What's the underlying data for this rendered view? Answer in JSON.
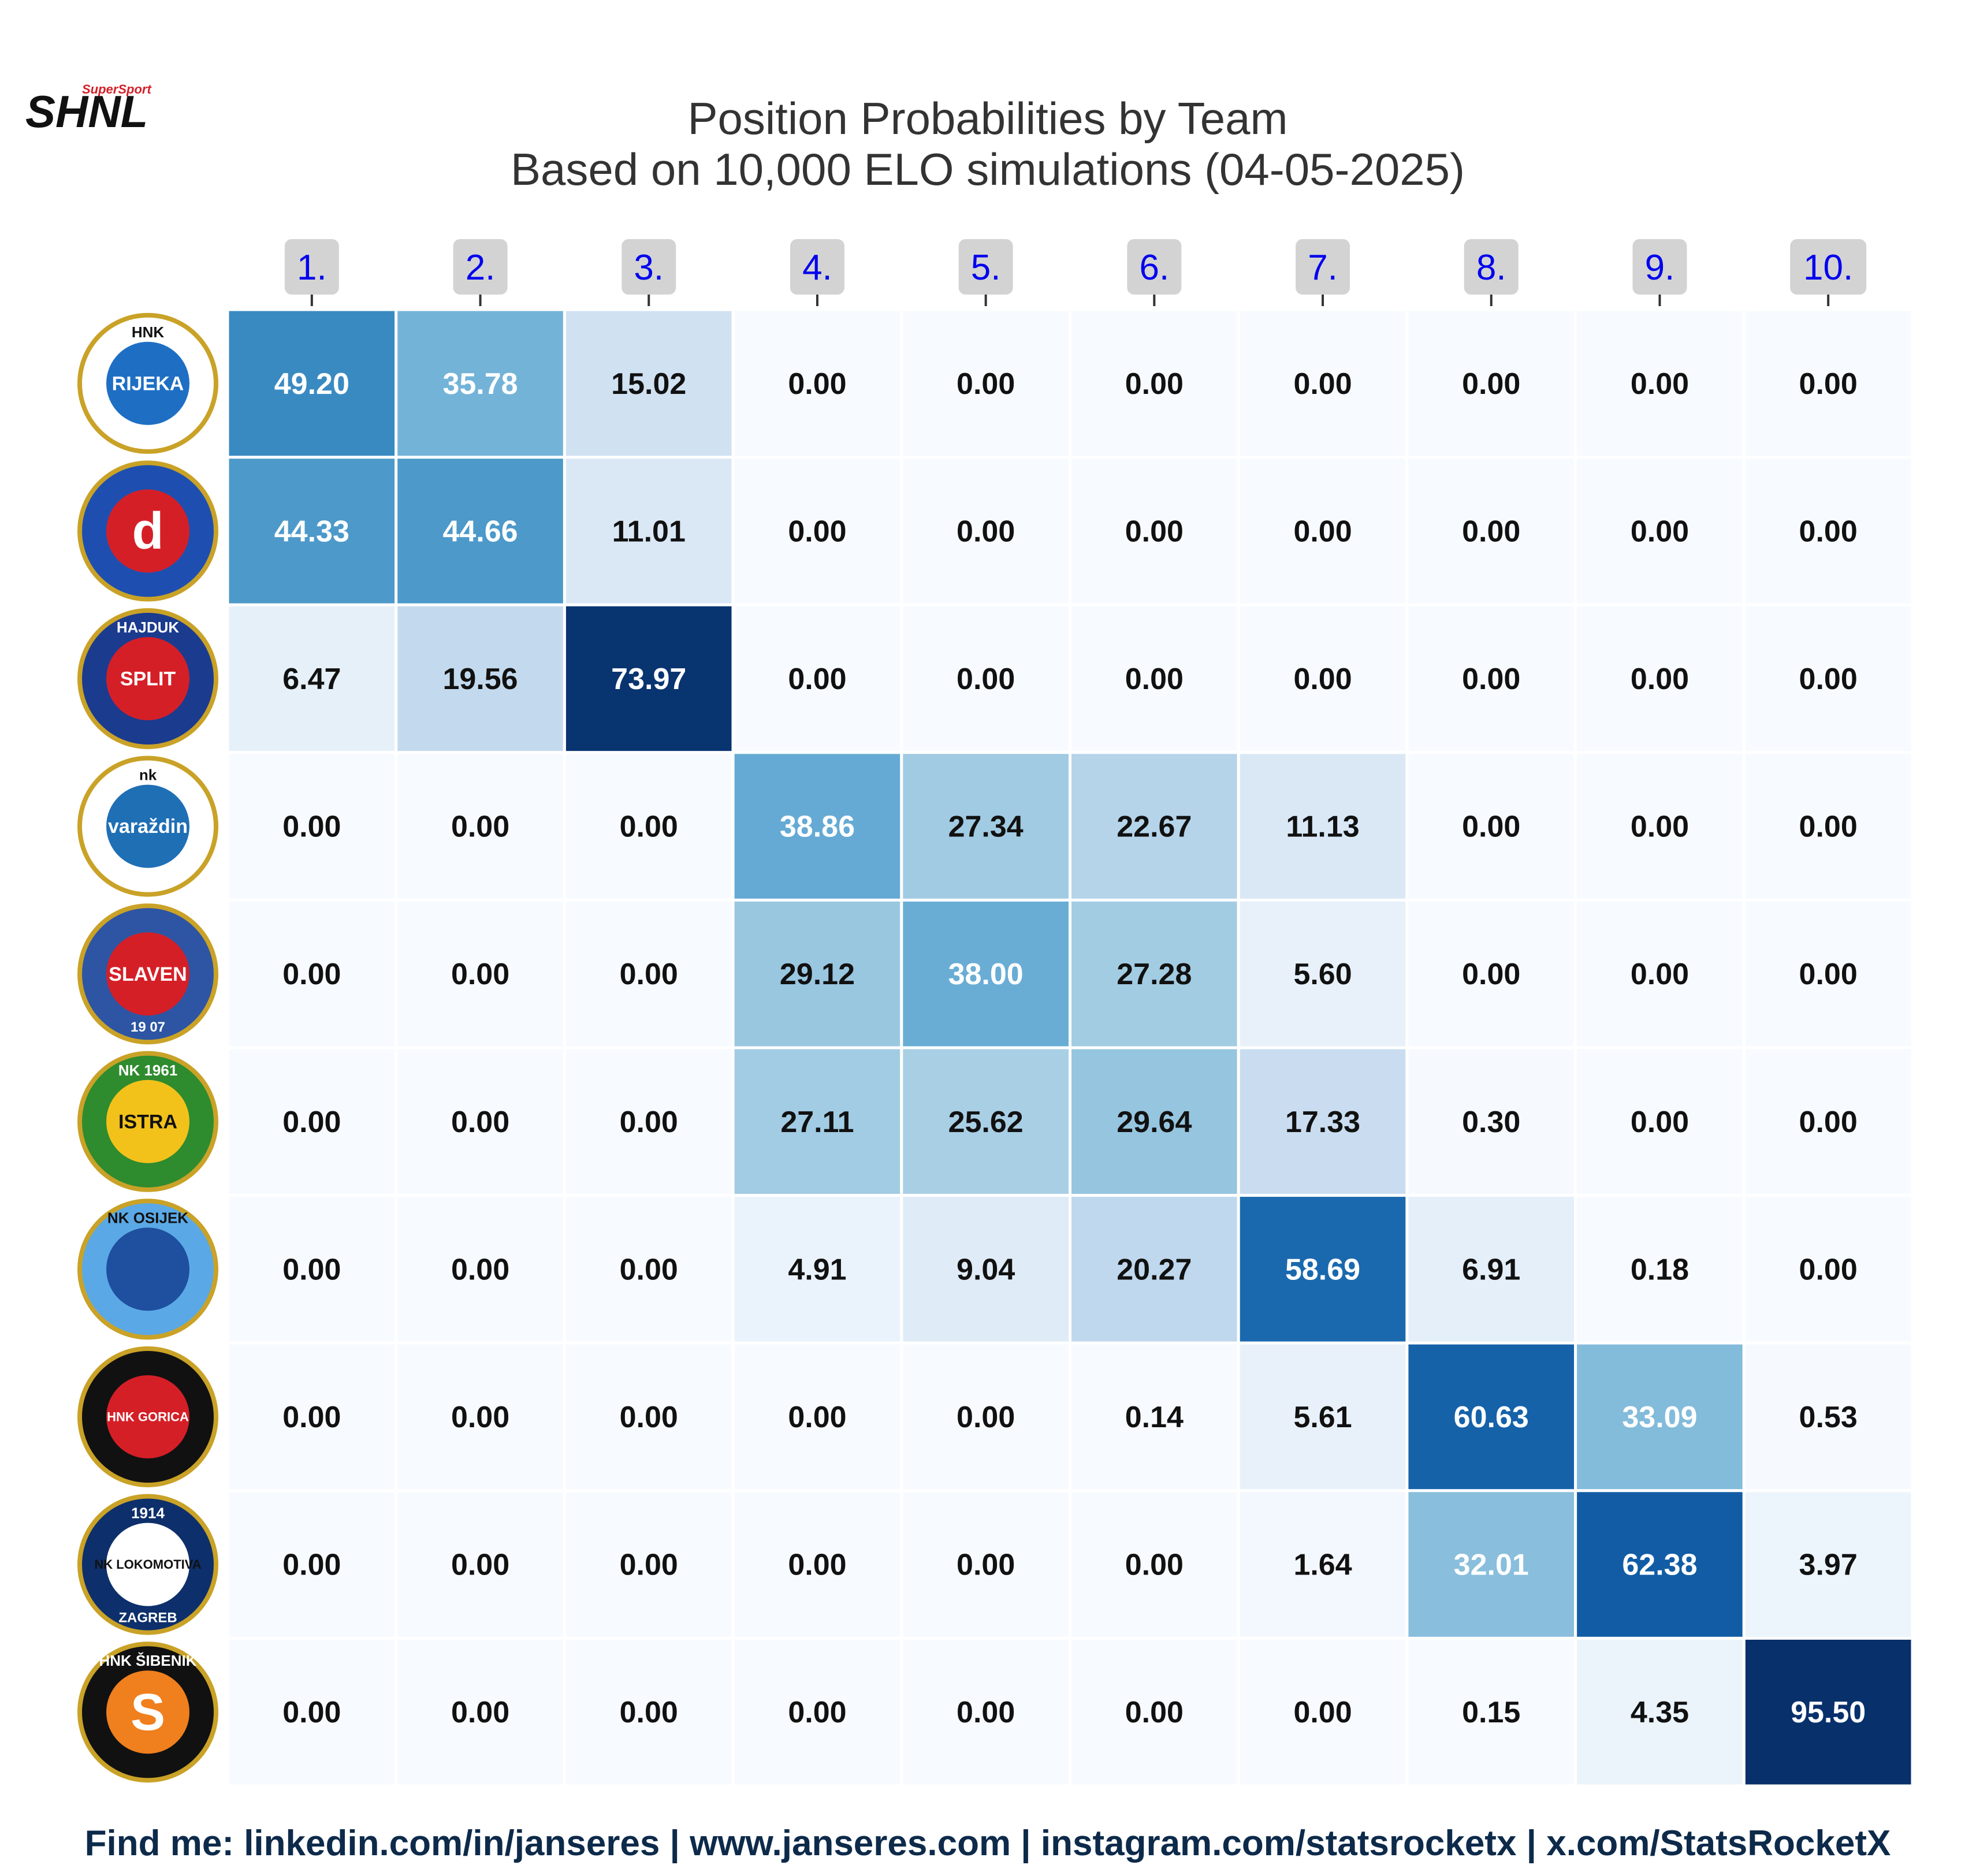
{
  "logo": {
    "small_text": "SuperSport",
    "main_text": "SHNL",
    "accent": "#d51f27"
  },
  "chart_data": {
    "type": "heatmap",
    "title": "Position Probabilities by Team",
    "subtitle": "Based on 10,000 ELO simulations (04-05-2025)",
    "columns": [
      "1.",
      "2.",
      "3.",
      "4.",
      "5.",
      "6.",
      "7.",
      "8.",
      "9.",
      "10."
    ],
    "rows": [
      {
        "team": "Rijeka",
        "badge": {
          "top": "HNK",
          "main": "RIJEKA"
        },
        "colors": [
          "#ffffff",
          "#1e6fc4"
        ],
        "values": [
          "49.20",
          "35.78",
          "15.02",
          "0.00",
          "0.00",
          "0.00",
          "0.00",
          "0.00",
          "0.00",
          "0.00"
        ]
      },
      {
        "team": "Dinamo Zagreb",
        "badge": {
          "main": "d"
        },
        "colors": [
          "#1e4fb0",
          "#d51f27"
        ],
        "values": [
          "44.33",
          "44.66",
          "11.01",
          "0.00",
          "0.00",
          "0.00",
          "0.00",
          "0.00",
          "0.00",
          "0.00"
        ]
      },
      {
        "team": "Hajduk Split",
        "badge": {
          "top": "HAJDUK",
          "main": "SPLIT"
        },
        "colors": [
          "#1b3b8f",
          "#d51f27"
        ],
        "values": [
          "6.47",
          "19.56",
          "73.97",
          "0.00",
          "0.00",
          "0.00",
          "0.00",
          "0.00",
          "0.00",
          "0.00"
        ]
      },
      {
        "team": "Varaždin",
        "badge": {
          "top": "nk",
          "main": "varaždin"
        },
        "colors": [
          "#ffffff",
          "#1f6fb5"
        ],
        "values": [
          "0.00",
          "0.00",
          "0.00",
          "38.86",
          "27.34",
          "22.67",
          "11.13",
          "0.00",
          "0.00",
          "0.00"
        ]
      },
      {
        "team": "Slaven Belupo",
        "badge": {
          "main": "SLAVEN",
          "bottom": "19 07"
        },
        "colors": [
          "#2d55a3",
          "#d51f27"
        ],
        "values": [
          "0.00",
          "0.00",
          "0.00",
          "29.12",
          "38.00",
          "27.28",
          "5.60",
          "0.00",
          "0.00",
          "0.00"
        ]
      },
      {
        "team": "Istra 1961",
        "badge": {
          "top": "NK 1961",
          "main": "ISTRA"
        },
        "colors": [
          "#2e8b2e",
          "#f2c21b"
        ],
        "values": [
          "0.00",
          "0.00",
          "0.00",
          "27.11",
          "25.62",
          "29.64",
          "17.33",
          "0.30",
          "0.00",
          "0.00"
        ]
      },
      {
        "team": "Osijek",
        "badge": {
          "top": "NK OSIJEK"
        },
        "colors": [
          "#5aa9e6",
          "#1f4f9f"
        ],
        "values": [
          "0.00",
          "0.00",
          "0.00",
          "4.91",
          "9.04",
          "20.27",
          "58.69",
          "6.91",
          "0.18",
          "0.00"
        ]
      },
      {
        "team": "Gorica",
        "badge": {
          "main": "HNK GORICA"
        },
        "colors": [
          "#111111",
          "#d51f27"
        ],
        "values": [
          "0.00",
          "0.00",
          "0.00",
          "0.00",
          "0.00",
          "0.14",
          "5.61",
          "60.63",
          "33.09",
          "0.53"
        ]
      },
      {
        "team": "Lokomotiva",
        "badge": {
          "top": "1914",
          "main": "NK LOKOMOTIVA",
          "bottom": "ZAGREB"
        },
        "colors": [
          "#0d2f6b",
          "#ffffff"
        ],
        "values": [
          "0.00",
          "0.00",
          "0.00",
          "0.00",
          "0.00",
          "0.00",
          "1.64",
          "32.01",
          "62.38",
          "3.97"
        ]
      },
      {
        "team": "Šibenik",
        "badge": {
          "top": "HNK ŠIBENIK",
          "main": "S"
        },
        "colors": [
          "#111111",
          "#f07f1e"
        ],
        "values": [
          "0.00",
          "0.00",
          "0.00",
          "0.00",
          "0.00",
          "0.00",
          "0.00",
          "0.15",
          "4.35",
          "95.50"
        ]
      }
    ],
    "colormap": "Blues",
    "vmin": 0,
    "vmax": 75,
    "grid": false,
    "legend": "none"
  },
  "footer": "Find me: linkedin.com/in/janseres | www.janseres.com | instagram.com/statsrocketx | x.com/StatsRocketX"
}
